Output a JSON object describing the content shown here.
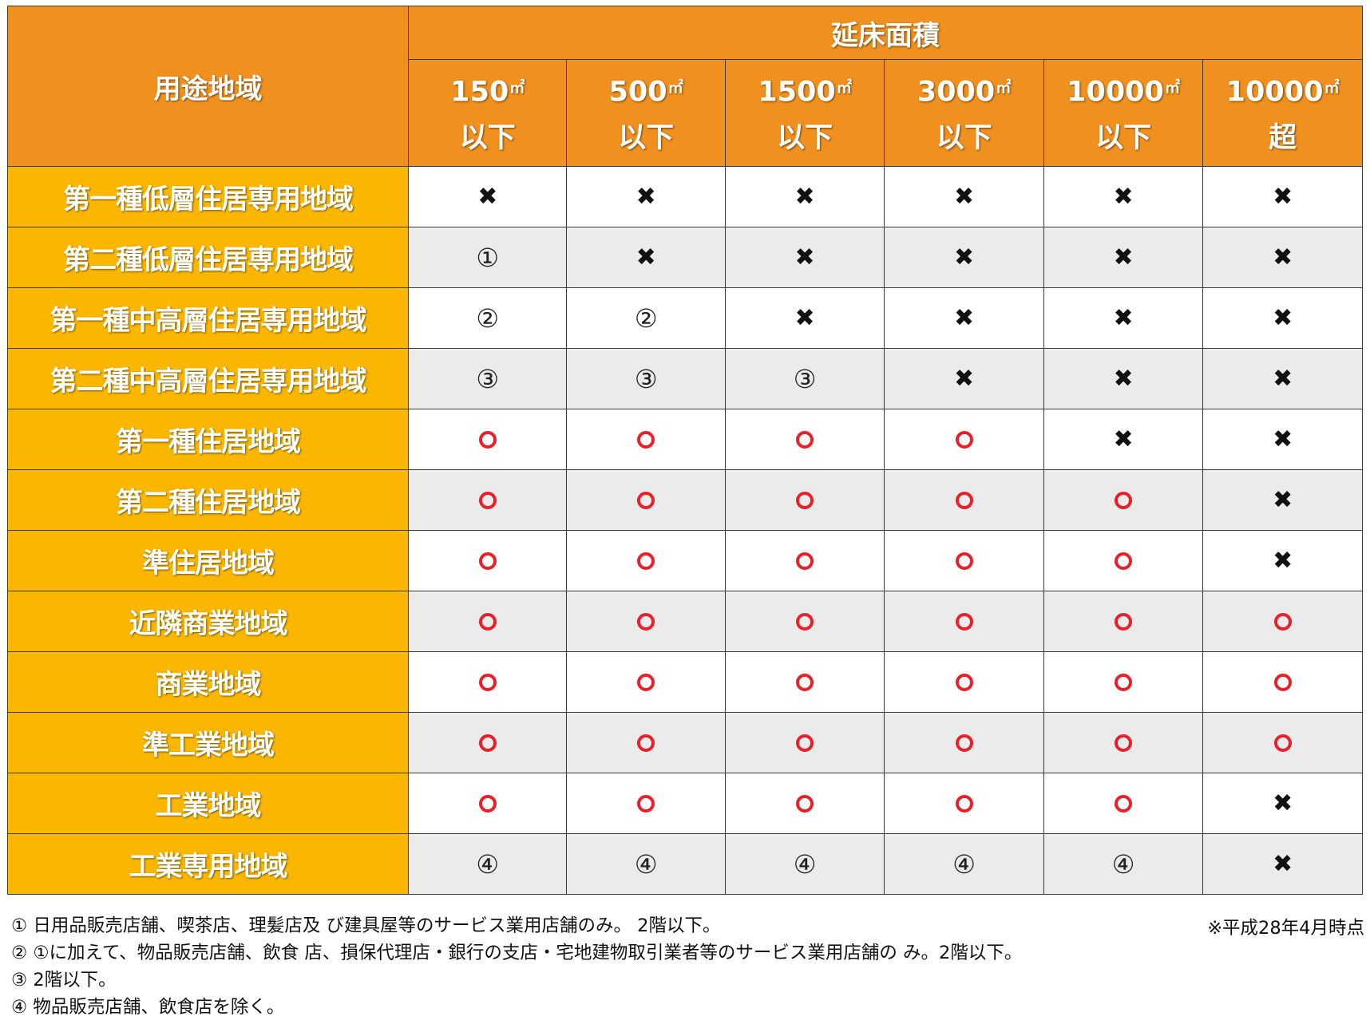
{
  "header": {
    "corner": "用途地域",
    "group": "延床面積",
    "sizes": [
      {
        "value": "150",
        "unit": "㎡",
        "qual": "以下"
      },
      {
        "value": "500",
        "unit": "㎡",
        "qual": "以下"
      },
      {
        "value": "1500",
        "unit": "㎡",
        "qual": "以下"
      },
      {
        "value": "3000",
        "unit": "㎡",
        "qual": "以下"
      },
      {
        "value": "10000",
        "unit": "㎡",
        "qual": "以下"
      },
      {
        "value": "10000",
        "unit": "㎡",
        "qual": "超"
      }
    ]
  },
  "legend_marks": {
    "o": "allowed",
    "x": "not-allowed"
  },
  "rows": [
    {
      "zone": "第一種低層住居専用地域",
      "cells": [
        "x",
        "x",
        "x",
        "x",
        "x",
        "x"
      ]
    },
    {
      "zone": "第二種低層住居専用地域",
      "cells": [
        "①",
        "x",
        "x",
        "x",
        "x",
        "x"
      ]
    },
    {
      "zone": "第一種中高層住居専用地域",
      "cells": [
        "②",
        "②",
        "x",
        "x",
        "x",
        "x"
      ]
    },
    {
      "zone": "第二種中高層住居専用地域",
      "cells": [
        "③",
        "③",
        "③",
        "x",
        "x",
        "x"
      ]
    },
    {
      "zone": "第一種住居地域",
      "cells": [
        "o",
        "o",
        "o",
        "o",
        "x",
        "x"
      ]
    },
    {
      "zone": "第二種住居地域",
      "cells": [
        "o",
        "o",
        "o",
        "o",
        "o",
        "x"
      ]
    },
    {
      "zone": "準住居地域",
      "cells": [
        "o",
        "o",
        "o",
        "o",
        "o",
        "x"
      ]
    },
    {
      "zone": "近隣商業地域",
      "cells": [
        "o",
        "o",
        "o",
        "o",
        "o",
        "o"
      ]
    },
    {
      "zone": "商業地域",
      "cells": [
        "o",
        "o",
        "o",
        "o",
        "o",
        "o"
      ]
    },
    {
      "zone": "準工業地域",
      "cells": [
        "o",
        "o",
        "o",
        "o",
        "o",
        "o"
      ]
    },
    {
      "zone": "工業地域",
      "cells": [
        "o",
        "o",
        "o",
        "o",
        "o",
        "x"
      ]
    },
    {
      "zone": "工業専用地域",
      "cells": [
        "④",
        "④",
        "④",
        "④",
        "④",
        "x"
      ]
    }
  ],
  "notes": [
    "① 日用品販売店舗、喫茶店、理髪店及 び建具屋等のサービス業用店舗のみ。 2階以下。",
    "② ①に加えて、物品販売店舗、飲食 店、損保代理店・銀行の支店・宅地建物取引業者等のサービス業用店舗の み。2階以下。",
    "③ 2階以下。",
    "④ 物品販売店舗、飲食店を除く。"
  ],
  "as_of": "※平成28年4月時点",
  "colors": {
    "header_orange": "#f0901e",
    "zone_yellow": "#fbb700",
    "circle_red": "#e8202a",
    "row_alt_gray": "#ebebeb"
  }
}
